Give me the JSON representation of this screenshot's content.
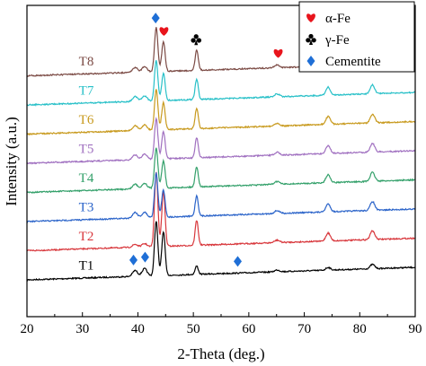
{
  "chart_data": {
    "type": "line",
    "xlabel": "2-Theta (deg.)",
    "ylabel": "Intensity (a.u.)",
    "xlim": [
      20,
      90
    ],
    "xticks": [
      20,
      30,
      40,
      50,
      60,
      70,
      80,
      90
    ],
    "y_tick_labels": false,
    "grid": false,
    "legend_position": "top-right",
    "legend": [
      {
        "symbol": "heart",
        "label": "α-Fe",
        "color": "#e8141c"
      },
      {
        "symbol": "club",
        "label": "γ-Fe",
        "color": "#000000"
      },
      {
        "symbol": "diamond",
        "label": "Cementite",
        "color": "#1f6fd6"
      }
    ],
    "peaks": [
      {
        "x": 39.5,
        "h": 0.28,
        "w": 0.45
      },
      {
        "x": 41.2,
        "h": 0.32,
        "w": 0.45
      },
      {
        "x": 43.3,
        "h": 1.0,
        "w": 0.3
      },
      {
        "x": 44.6,
        "h": 0.8,
        "w": 0.3
      },
      {
        "x": 50.6,
        "h": 0.66,
        "w": 0.28
      },
      {
        "x": 65.1,
        "h": 0.12,
        "w": 0.45
      },
      {
        "x": 74.3,
        "h": 0.26,
        "w": 0.4
      },
      {
        "x": 82.3,
        "h": 0.26,
        "w": 0.4
      }
    ],
    "series": [
      {
        "name": "T1",
        "color": "#000000",
        "offset": 0.0,
        "scale": 0.62,
        "peak_scale": [
          1.0,
          1.1,
          2.6,
          2.6,
          0.6,
          0.7,
          0.5,
          0.8
        ]
      },
      {
        "name": "T2",
        "color": "#d8373c",
        "offset": 1.0,
        "scale": 1.0,
        "peak_scale": [
          0.3,
          0.3,
          2.2,
          2.0,
          1.1,
          0.6,
          0.9,
          1.0
        ]
      },
      {
        "name": "T3",
        "color": "#2a63c9",
        "offset": 2.0,
        "scale": 1.0,
        "peak_scale": [
          0.6,
          0.5,
          1.3,
          1.0,
          0.9,
          0.7,
          0.9,
          1.0
        ]
      },
      {
        "name": "T4",
        "color": "#33a06a",
        "offset": 3.0,
        "scale": 1.0,
        "peak_scale": [
          0.5,
          0.5,
          1.2,
          1.0,
          0.9,
          0.7,
          0.9,
          1.0
        ]
      },
      {
        "name": "T5",
        "color": "#a070c0",
        "offset": 4.0,
        "scale": 1.0,
        "peak_scale": [
          0.5,
          0.5,
          1.2,
          1.0,
          0.9,
          0.7,
          0.9,
          1.0
        ]
      },
      {
        "name": "T6",
        "color": "#c89a1e",
        "offset": 5.0,
        "scale": 1.0,
        "peak_scale": [
          0.5,
          0.5,
          1.2,
          1.0,
          0.9,
          0.7,
          0.9,
          1.0
        ]
      },
      {
        "name": "T7",
        "color": "#28c0c8",
        "offset": 6.0,
        "scale": 1.0,
        "peak_scale": [
          0.5,
          0.5,
          1.2,
          1.0,
          0.9,
          0.7,
          0.9,
          1.0
        ]
      },
      {
        "name": "T8",
        "color": "#7b4a44",
        "offset": 7.0,
        "scale": 1.0,
        "peak_scale": [
          0.5,
          0.5,
          1.3,
          1.1,
          0.9,
          0.7,
          0.9,
          1.0
        ]
      }
    ],
    "annotations": [
      {
        "symbol": "diamond",
        "x": 43.2,
        "series": "T8",
        "color": "#1f6fd6"
      },
      {
        "symbol": "heart",
        "x": 44.7,
        "series": "T8",
        "color": "#e8141c"
      },
      {
        "symbol": "club",
        "x": 50.5,
        "series": "T8",
        "color": "#000000"
      },
      {
        "symbol": "heart",
        "x": 65.3,
        "series": "T8",
        "color": "#e8141c"
      },
      {
        "symbol": "club",
        "x": 74.2,
        "series": "T8",
        "color": "#000000"
      },
      {
        "symbol": "heart",
        "x": 82.3,
        "series": "T8",
        "color": "#e8141c"
      },
      {
        "symbol": "diamond",
        "x": 39.2,
        "series": "T1",
        "color": "#1f6fd6"
      },
      {
        "symbol": "diamond",
        "x": 41.3,
        "series": "T1",
        "color": "#1f6fd6"
      },
      {
        "symbol": "diamond",
        "x": 58.0,
        "series": "T1",
        "color": "#1f6fd6"
      }
    ]
  }
}
